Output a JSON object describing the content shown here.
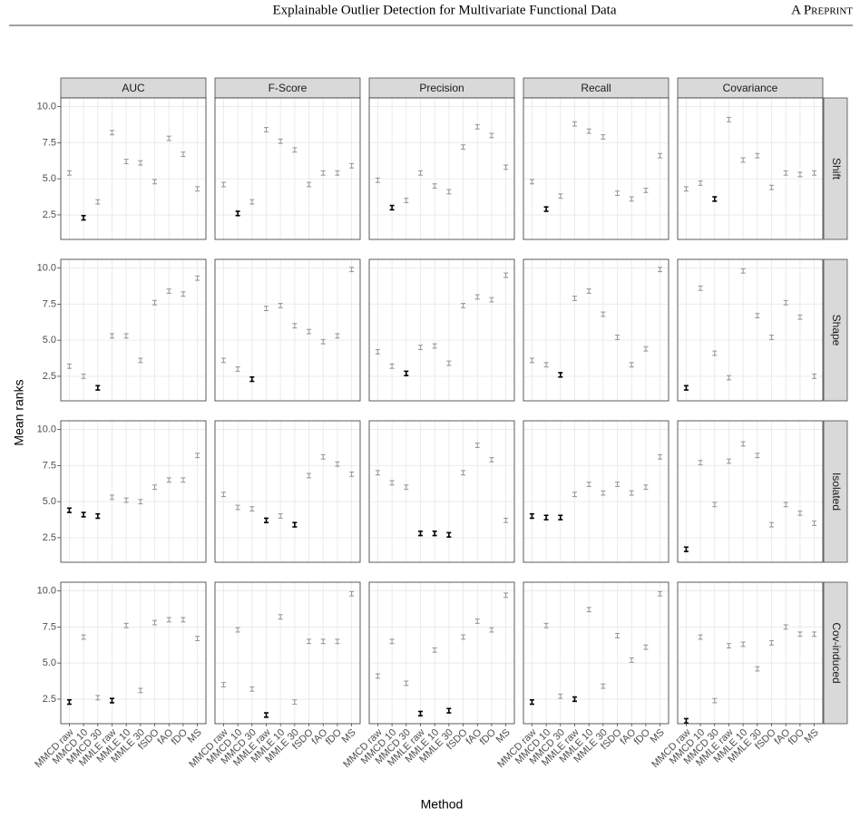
{
  "header": {
    "title": "Explainable Outlier Detection for Multivariate Functional Data",
    "right": "A Preprint"
  },
  "chart_data": {
    "type": "errorbar",
    "x_label": "Method",
    "y_label": "Mean ranks",
    "columns": [
      "AUC",
      "F-Score",
      "Precision",
      "Recall",
      "Covariance"
    ],
    "rows": [
      "Shift",
      "Shape",
      "Isolated",
      "Cov-induced"
    ],
    "categories": [
      "MMCD raw",
      "MMCD 10",
      "MMCD 30",
      "MMLE raw",
      "MMLE 10",
      "MMLE 30",
      "fSDO",
      "fAO",
      "fDO",
      "MS"
    ],
    "ylim": [
      0.8,
      10.6
    ],
    "yticks": [
      2.5,
      {
        "value": 5,
        "label": "5.0"
      },
      7.5,
      {
        "value": 10,
        "label": "10.0"
      }
    ],
    "grid": true,
    "color": "#999999",
    "highlight_color": "#000000",
    "error": 0.15,
    "panels": [
      [
        {
          "values": [
            5.4,
            2.3,
            3.4,
            8.2,
            6.2,
            6.1,
            4.8,
            7.8,
            6.7,
            4.3
          ],
          "highlight": [
            1
          ]
        },
        {
          "values": [
            4.6,
            2.6,
            3.4,
            8.4,
            7.6,
            7.0,
            4.6,
            5.4,
            5.4,
            5.9
          ],
          "highlight": [
            1
          ]
        },
        {
          "values": [
            4.9,
            3.0,
            3.5,
            5.4,
            4.5,
            4.1,
            7.2,
            8.6,
            8.0,
            5.8
          ],
          "highlight": [
            1
          ]
        },
        {
          "values": [
            4.8,
            2.9,
            3.8,
            8.8,
            8.3,
            7.9,
            4.0,
            3.6,
            4.2,
            6.6
          ],
          "highlight": [
            1
          ]
        },
        {
          "values": [
            4.3,
            4.7,
            3.6,
            9.1,
            6.3,
            6.6,
            4.4,
            5.4,
            5.3,
            5.4
          ],
          "highlight": [
            2
          ]
        }
      ],
      [
        {
          "values": [
            3.2,
            2.5,
            1.7,
            5.3,
            5.3,
            3.6,
            7.6,
            8.4,
            8.2,
            9.3
          ],
          "highlight": [
            2
          ]
        },
        {
          "values": [
            3.6,
            3.0,
            2.3,
            7.2,
            7.4,
            6.0,
            5.6,
            4.9,
            5.3,
            9.9
          ],
          "highlight": [
            2
          ]
        },
        {
          "values": [
            4.2,
            3.2,
            2.7,
            4.5,
            4.6,
            3.4,
            7.4,
            8.0,
            7.8,
            9.5
          ],
          "highlight": [
            2
          ]
        },
        {
          "values": [
            3.6,
            3.3,
            2.6,
            7.9,
            8.4,
            6.8,
            5.2,
            3.3,
            4.4,
            9.9
          ],
          "highlight": [
            2
          ]
        },
        {
          "values": [
            1.7,
            8.6,
            4.1,
            2.4,
            9.8,
            6.7,
            5.2,
            7.6,
            6.6,
            2.5
          ],
          "highlight": [
            0
          ]
        }
      ],
      [
        {
          "values": [
            4.4,
            4.1,
            4.0,
            5.3,
            5.1,
            5.0,
            6.0,
            6.5,
            6.5,
            8.2
          ],
          "highlight": [
            0,
            1,
            2
          ]
        },
        {
          "values": [
            5.5,
            4.6,
            4.5,
            3.7,
            4.0,
            3.4,
            6.8,
            8.1,
            7.6,
            6.9
          ],
          "highlight": [
            3,
            5
          ]
        },
        {
          "values": [
            7.0,
            6.3,
            6.0,
            2.8,
            2.8,
            2.7,
            7.0,
            8.9,
            7.9,
            3.7
          ],
          "highlight": [
            3,
            4,
            5
          ]
        },
        {
          "values": [
            4.0,
            3.9,
            3.9,
            5.5,
            6.2,
            5.6,
            6.2,
            5.6,
            6.0,
            8.1
          ],
          "highlight": [
            0,
            1,
            2
          ]
        },
        {
          "values": [
            1.7,
            7.7,
            4.8,
            7.8,
            9.0,
            8.2,
            3.4,
            4.8,
            4.2,
            3.5
          ],
          "highlight": [
            0
          ]
        }
      ],
      [
        {
          "values": [
            2.3,
            6.8,
            2.6,
            2.4,
            7.6,
            3.1,
            7.8,
            8.0,
            8.0,
            6.7
          ],
          "highlight": [
            0,
            3
          ]
        },
        {
          "values": [
            3.5,
            7.3,
            3.2,
            1.4,
            8.2,
            2.3,
            6.5,
            6.5,
            6.5,
            9.8
          ],
          "highlight": [
            3
          ]
        },
        {
          "values": [
            4.1,
            6.5,
            3.6,
            1.5,
            5.9,
            1.7,
            6.8,
            7.9,
            7.3,
            9.7
          ],
          "highlight": [
            3,
            5
          ]
        },
        {
          "values": [
            2.3,
            7.6,
            2.7,
            2.5,
            8.7,
            3.4,
            6.9,
            5.2,
            6.1,
            9.8
          ],
          "highlight": [
            0,
            3
          ]
        },
        {
          "values": [
            1.0,
            6.8,
            2.4,
            6.2,
            6.3,
            4.6,
            6.4,
            7.5,
            7.0,
            7.0
          ],
          "highlight": [
            0
          ]
        }
      ]
    ]
  }
}
